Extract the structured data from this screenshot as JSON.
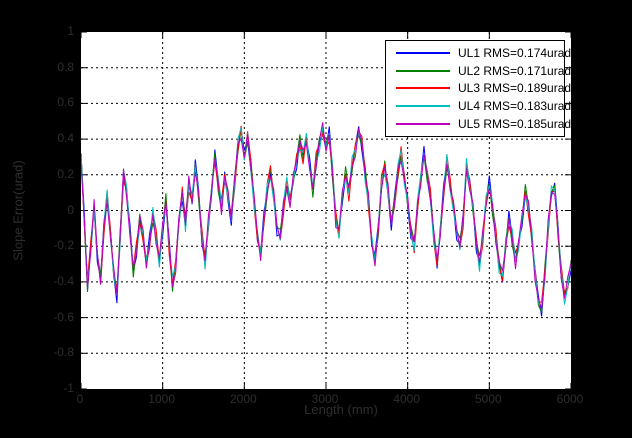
{
  "figure": {
    "background": "#000000",
    "plot_background": "#ffffff",
    "label_color": "#2e2e2e",
    "grid_color": "#000000"
  },
  "chart_data": {
    "type": "line",
    "title": "",
    "xlabel": "Length (mm)",
    "ylabel": "Slope Error(urad)",
    "xlim": [
      0,
      6000
    ],
    "ylim": [
      -1,
      1
    ],
    "xticks": [
      "0",
      "1000",
      "2000",
      "3000",
      "4000",
      "5000",
      "6000"
    ],
    "yticks": [
      "1",
      "0.8",
      "0.6",
      "0.4",
      "0.2",
      "0",
      "-0.2",
      "-0.4",
      "-0.6",
      "-0.8",
      "-1"
    ],
    "grid": true,
    "grid_style": "dashed",
    "legend_position": "top-right",
    "x_step_mm": 40,
    "base_values": [
      0.3,
      -0.05,
      -0.42,
      -0.2,
      0.02,
      -0.25,
      -0.4,
      -0.1,
      0.08,
      -0.12,
      -0.35,
      -0.47,
      -0.15,
      0.2,
      0.1,
      -0.12,
      -0.33,
      -0.22,
      -0.05,
      -0.15,
      -0.3,
      -0.18,
      -0.02,
      -0.15,
      -0.28,
      -0.1,
      0.05,
      -0.2,
      -0.42,
      -0.3,
      -0.05,
      0.1,
      -0.08,
      0.15,
      0.05,
      0.25,
      0.1,
      -0.15,
      -0.28,
      -0.08,
      0.12,
      0.3,
      0.15,
      0.02,
      0.2,
      0.08,
      -0.05,
      0.15,
      0.35,
      0.45,
      0.3,
      0.42,
      0.25,
      0.05,
      -0.15,
      -0.25,
      -0.05,
      0.12,
      0.22,
      0.08,
      -0.1,
      -0.15,
      0.02,
      0.15,
      0.05,
      0.18,
      0.28,
      0.38,
      0.3,
      0.4,
      0.25,
      0.12,
      0.28,
      0.38,
      0.45,
      0.35,
      0.42,
      0.22,
      -0.05,
      -0.12,
      0.08,
      0.2,
      0.1,
      0.25,
      0.35,
      0.45,
      0.38,
      0.2,
      0.05,
      -0.18,
      -0.28,
      -0.1,
      0.15,
      0.25,
      0.1,
      -0.08,
      0.05,
      0.22,
      0.32,
      0.18,
      0.05,
      -0.12,
      -0.2,
      0.02,
      0.18,
      0.32,
      0.2,
      0.08,
      -0.15,
      -0.3,
      -0.12,
      0.1,
      0.28,
      0.15,
      0.02,
      -0.12,
      -0.2,
      -0.05,
      0.25,
      0.15,
      0.02,
      -0.18,
      -0.3,
      -0.15,
      0.05,
      0.15,
      0.02,
      -0.15,
      -0.3,
      -0.38,
      -0.2,
      -0.05,
      -0.15,
      -0.28,
      -0.18,
      -0.05,
      0.1,
      0.02,
      -0.15,
      -0.35,
      -0.5,
      -0.55,
      -0.35,
      -0.1,
      0.1,
      0.12,
      -0.1,
      -0.35,
      -0.48,
      -0.42,
      -0.3
    ],
    "jitter_amp": 0.03,
    "series": [
      {
        "name": "UL1",
        "label": "UL1 RMS=0.174urad",
        "rms_urad": 0.174,
        "color": "#0000FF",
        "jitter_phase": 0.0
      },
      {
        "name": "UL2",
        "label": "UL2 RMS=0.171urad",
        "rms_urad": 0.171,
        "color": "#008000",
        "jitter_phase": 1.26
      },
      {
        "name": "UL3",
        "label": "UL3 RMS=0.189urad",
        "rms_urad": 0.189,
        "color": "#FF0000",
        "jitter_phase": 2.51
      },
      {
        "name": "UL4",
        "label": "UL4 RMS=0.183urad",
        "rms_urad": 0.183,
        "color": "#00BFBF",
        "jitter_phase": 3.77
      },
      {
        "name": "UL5",
        "label": "UL5 RMS=0.185urad",
        "rms_urad": 0.185,
        "color": "#BF00BF",
        "jitter_phase": 5.03
      }
    ]
  }
}
